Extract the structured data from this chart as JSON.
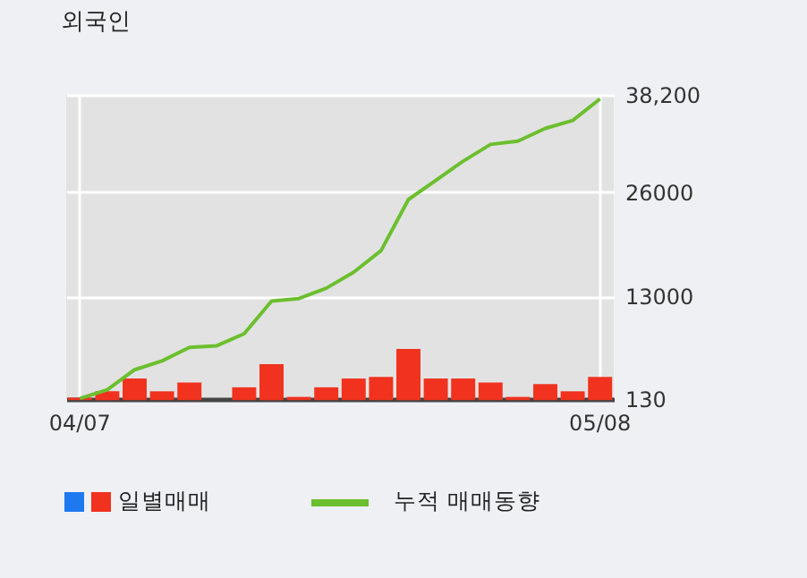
{
  "chart_data": {
    "type": "bar",
    "title": "외국인",
    "categories": [
      "04/07",
      null,
      null,
      null,
      null,
      null,
      null,
      null,
      null,
      null,
      null,
      null,
      null,
      null,
      null,
      null,
      null,
      null,
      null,
      "05/08"
    ],
    "ylim": [
      130,
      38200
    ],
    "yticks": [
      130,
      13000,
      26000,
      {
        "value": 38200,
        "label": "38,200"
      }
    ],
    "grid": true,
    "legend": "bottom",
    "series": [
      {
        "name": "일별매매",
        "color": "#f0321e",
        "values": [
          300,
          1100,
          2700,
          1100,
          2200,
          null,
          1600,
          4500,
          400,
          1600,
          2700,
          2900,
          6400,
          2700,
          2700,
          2200,
          400,
          2000,
          1100,
          2900
        ]
      },
      {
        "name": "누적 매매동향",
        "type": "line",
        "color": "#6cbf2e",
        "values": [
          200,
          1300,
          3800,
          4900,
          6600,
          6800,
          8300,
          12400,
          12700,
          14000,
          16000,
          18700,
          25100,
          27500,
          29900,
          32000,
          32400,
          34000,
          35000,
          37700
        ]
      }
    ]
  }
}
